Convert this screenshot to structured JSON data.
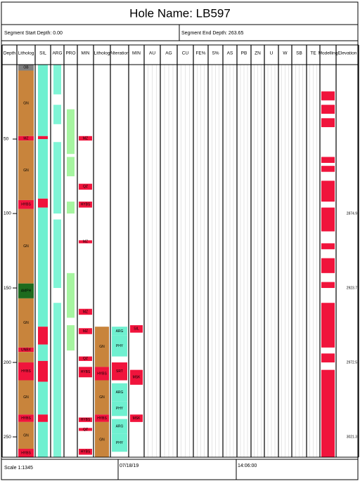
{
  "header": {
    "title": "Hole Name: LB597",
    "start": "Segment Start Depth: 0.00",
    "end": "Segment End Depth: 263.65"
  },
  "depth": {
    "range": [
      0,
      263.65
    ],
    "ticks": [
      50,
      100,
      150,
      200,
      250
    ]
  },
  "elevation": [
    {
      "depth": 100,
      "label": "2874.9"
    },
    {
      "depth": 150,
      "label": "2923.7"
    },
    {
      "depth": 200,
      "label": "2972.5"
    },
    {
      "depth": 250,
      "label": "3021.3"
    }
  ],
  "columns": [
    {
      "name": "Depth"
    },
    {
      "name": "Litholog",
      "intervals": [
        {
          "from": 0,
          "to": 4,
          "color": "#808080",
          "label": "OB"
        },
        {
          "from": 4,
          "to": 48,
          "color": "#c8843c",
          "label": "GN"
        },
        {
          "from": 48,
          "to": 51,
          "color": "#f0143c",
          "label": "MZ"
        },
        {
          "from": 51,
          "to": 91,
          "color": "#c8843c",
          "label": "GN"
        },
        {
          "from": 91,
          "to": 97,
          "color": "#f0143c",
          "label": "HYBS"
        },
        {
          "from": 97,
          "to": 147,
          "color": "#c8843c",
          "label": "GN"
        },
        {
          "from": 147,
          "to": 157,
          "color": "#1e6b1e",
          "label": "AMPH"
        },
        {
          "from": 157,
          "to": 190,
          "color": "#c8843c",
          "label": "GN"
        },
        {
          "from": 190,
          "to": 193,
          "color": "#f0143c",
          "label": "UNBX"
        },
        {
          "from": 193,
          "to": 200,
          "color": "#c8843c"
        },
        {
          "from": 200,
          "to": 212,
          "color": "#f0143c",
          "label": "HYBS"
        },
        {
          "from": 212,
          "to": 235,
          "color": "#c8843c",
          "label": "GN"
        },
        {
          "from": 235,
          "to": 240,
          "color": "#f0143c",
          "label": "HYBS"
        },
        {
          "from": 240,
          "to": 258,
          "color": "#c8843c",
          "label": "GN"
        },
        {
          "from": 258,
          "to": 263.65,
          "color": "#f0143c",
          "label": "HYBS"
        }
      ]
    },
    {
      "name": "SIL",
      "intervals": [
        {
          "from": 0,
          "to": 48,
          "color": "#6ff0d0"
        },
        {
          "from": 48,
          "to": 50,
          "color": "#f0143c"
        },
        {
          "from": 50,
          "to": 90,
          "color": "#6ff0d0"
        },
        {
          "from": 90,
          "to": 96,
          "color": "#f0143c"
        },
        {
          "from": 96,
          "to": 176,
          "color": "#6ff0d0"
        },
        {
          "from": 176,
          "to": 188,
          "color": "#f0143c"
        },
        {
          "from": 188,
          "to": 199,
          "color": "#6ff0d0"
        },
        {
          "from": 199,
          "to": 213,
          "color": "#f0143c"
        },
        {
          "from": 213,
          "to": 235,
          "color": "#6ff0d0"
        },
        {
          "from": 235,
          "to": 240,
          "color": "#f0143c"
        },
        {
          "from": 240,
          "to": 263.65,
          "color": "#6ff0d0"
        }
      ]
    },
    {
      "name": "ARG",
      "intervals": [
        {
          "from": 0,
          "to": 20,
          "color": "#7ff5d6"
        },
        {
          "from": 27,
          "to": 40,
          "color": "#7ff5d6"
        },
        {
          "from": 52,
          "to": 100,
          "color": "#7ff5d6"
        },
        {
          "from": 104,
          "to": 150,
          "color": "#7ff5d6"
        },
        {
          "from": 160,
          "to": 263.65,
          "color": "#7ff5d6"
        }
      ]
    },
    {
      "name": "PRO",
      "intervals": [
        {
          "from": 30,
          "to": 60,
          "color": "#a6f5a0"
        },
        {
          "from": 62,
          "to": 75,
          "color": "#a6f5a0"
        },
        {
          "from": 92,
          "to": 100,
          "color": "#a6f5a0"
        },
        {
          "from": 140,
          "to": 170,
          "color": "#a6f5a0"
        },
        {
          "from": 175,
          "to": 192,
          "color": "#a6f5a0"
        }
      ]
    },
    {
      "name": "MIN",
      "intervals": [
        {
          "from": 48,
          "to": 51,
          "color": "#f0143c",
          "label": "MZ"
        },
        {
          "from": 80,
          "to": 84,
          "color": "#f0143c",
          "label": "QZ"
        },
        {
          "from": 92,
          "to": 96,
          "color": "#f0143c",
          "label": "HYBS"
        },
        {
          "from": 118,
          "to": 120,
          "color": "#f0143c",
          "label": "MZ"
        },
        {
          "from": 164,
          "to": 168,
          "color": "#f0143c",
          "label": "MZ"
        },
        {
          "from": 177,
          "to": 181,
          "color": "#f0143c",
          "label": "MZ"
        },
        {
          "from": 196,
          "to": 199,
          "color": "#f0143c",
          "label": "QZ"
        },
        {
          "from": 203,
          "to": 210,
          "color": "#f0143c",
          "label": "HYBS"
        },
        {
          "from": 237,
          "to": 240,
          "color": "#f0143c",
          "label": "HYBS"
        },
        {
          "from": 244,
          "to": 246,
          "color": "#f0143c",
          "label": "QZ"
        },
        {
          "from": 258,
          "to": 262,
          "color": "#f0143c",
          "label": "HYBS"
        }
      ]
    },
    {
      "name": "Litholog",
      "intervals": [
        {
          "from": 176,
          "to": 203,
          "color": "#c8843c",
          "label": "GN"
        },
        {
          "from": 203,
          "to": 212,
          "color": "#f0143c",
          "label": "HYBS"
        },
        {
          "from": 212,
          "to": 235,
          "color": "#c8843c",
          "label": "GN"
        },
        {
          "from": 235,
          "to": 240,
          "color": "#f0143c",
          "label": "HYBS"
        },
        {
          "from": 240,
          "to": 263.65,
          "color": "#c8843c",
          "label": "GN"
        }
      ]
    },
    {
      "name": "Alteration",
      "intervals": [
        {
          "from": 176,
          "to": 182,
          "color": "#6ff0d0",
          "label": "ARG"
        },
        {
          "from": 182,
          "to": 196,
          "color": "#6ff0d0",
          "label": "PHY"
        },
        {
          "from": 200,
          "to": 212,
          "color": "#f0143c",
          "label": "SRT"
        },
        {
          "from": 214,
          "to": 226,
          "color": "#6ff0d0",
          "label": "ARG"
        },
        {
          "from": 226,
          "to": 236,
          "color": "#6ff0d0",
          "label": "PHY"
        },
        {
          "from": 238,
          "to": 248,
          "color": "#6ff0d0",
          "label": "ARG"
        },
        {
          "from": 248,
          "to": 260,
          "color": "#6ff0d0",
          "label": "PHY"
        }
      ]
    },
    {
      "name": "MIN",
      "intervals": [
        {
          "from": 175,
          "to": 180,
          "color": "#f0143c",
          "label": "SIL"
        },
        {
          "from": 205,
          "to": 215,
          "color": "#f0143c",
          "label": "MSK"
        },
        {
          "from": 235,
          "to": 240,
          "color": "#f0143c",
          "label": "MSK"
        }
      ]
    },
    {
      "name": "AU"
    },
    {
      "name": "AG"
    },
    {
      "name": "CU"
    },
    {
      "name": "FE%"
    },
    {
      "name": "S%"
    },
    {
      "name": "AS"
    },
    {
      "name": "PB"
    },
    {
      "name": "ZN"
    },
    {
      "name": "U"
    },
    {
      "name": "W"
    },
    {
      "name": "SB"
    },
    {
      "name": "TE"
    },
    {
      "name": "Modelling",
      "intervals": [
        {
          "from": 18,
          "to": 24,
          "color": "#f0143c"
        },
        {
          "from": 27,
          "to": 33,
          "color": "#f0143c"
        },
        {
          "from": 36,
          "to": 42,
          "color": "#f0143c"
        },
        {
          "from": 62,
          "to": 66,
          "color": "#f0143c"
        },
        {
          "from": 68,
          "to": 72,
          "color": "#f0143c"
        },
        {
          "from": 78,
          "to": 92,
          "color": "#f0143c"
        },
        {
          "from": 96,
          "to": 112,
          "color": "#f0143c"
        },
        {
          "from": 120,
          "to": 124,
          "color": "#f0143c"
        },
        {
          "from": 130,
          "to": 140,
          "color": "#f0143c"
        },
        {
          "from": 146,
          "to": 150,
          "color": "#f0143c"
        },
        {
          "from": 160,
          "to": 190,
          "color": "#f0143c"
        },
        {
          "from": 194,
          "to": 200,
          "color": "#f0143c"
        },
        {
          "from": 205,
          "to": 263.65,
          "color": "#f0143c"
        }
      ]
    },
    {
      "name": "Elevation"
    }
  ],
  "footer": {
    "scale": "Scale 1:1345",
    "date": "07/18/19",
    "time": "14:06:00"
  }
}
